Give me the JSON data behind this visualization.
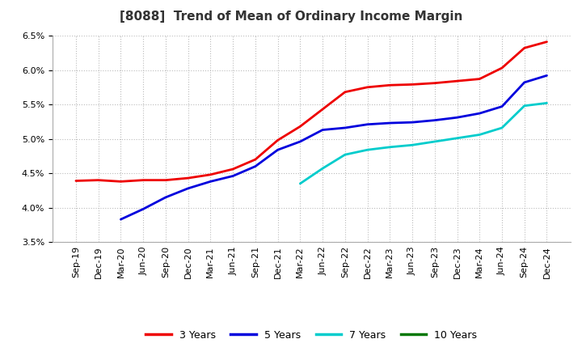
{
  "title": "[8088]  Trend of Mean of Ordinary Income Margin",
  "ylim": [
    0.035,
    0.065
  ],
  "yticks": [
    0.035,
    0.04,
    0.045,
    0.05,
    0.055,
    0.06,
    0.065
  ],
  "background_color": "#ffffff",
  "grid_color": "#bbbbbb",
  "x_labels": [
    "Sep-19",
    "Dec-19",
    "Mar-20",
    "Jun-20",
    "Sep-20",
    "Dec-20",
    "Mar-21",
    "Jun-21",
    "Sep-21",
    "Dec-21",
    "Mar-22",
    "Jun-22",
    "Sep-22",
    "Dec-22",
    "Mar-23",
    "Jun-23",
    "Sep-23",
    "Dec-23",
    "Mar-24",
    "Jun-24",
    "Sep-24",
    "Dec-24"
  ],
  "series": {
    "3 Years": {
      "color": "#ee0000",
      "data": [
        0.0439,
        0.044,
        0.0438,
        0.044,
        0.044,
        0.0443,
        0.0448,
        0.0456,
        0.047,
        0.0498,
        0.0518,
        0.0543,
        0.0568,
        0.0575,
        0.0578,
        0.0579,
        0.0581,
        0.0584,
        0.0587,
        0.0603,
        0.0632,
        0.0641
      ]
    },
    "5 Years": {
      "color": "#0000dd",
      "data": [
        null,
        null,
        0.0383,
        0.0398,
        0.0415,
        0.0428,
        0.0438,
        0.0446,
        0.046,
        0.0484,
        0.0496,
        0.0513,
        0.0516,
        0.0521,
        0.0523,
        0.0524,
        0.0527,
        0.0531,
        0.0537,
        0.0547,
        0.0582,
        0.0592
      ]
    },
    "7 Years": {
      "color": "#00cccc",
      "data": [
        null,
        null,
        null,
        null,
        null,
        null,
        null,
        null,
        null,
        null,
        0.0435,
        0.0457,
        0.0477,
        0.0484,
        0.0488,
        0.0491,
        0.0496,
        0.0501,
        0.0506,
        0.0516,
        0.0548,
        0.0552
      ]
    },
    "10 Years": {
      "color": "#007700",
      "data": [
        null,
        null,
        null,
        null,
        null,
        null,
        null,
        null,
        null,
        null,
        null,
        null,
        null,
        null,
        null,
        null,
        null,
        null,
        null,
        null,
        null,
        null
      ]
    }
  },
  "legend_labels": [
    "3 Years",
    "5 Years",
    "7 Years",
    "10 Years"
  ],
  "legend_colors": [
    "#ee0000",
    "#0000dd",
    "#00cccc",
    "#007700"
  ],
  "title_fontsize": 11,
  "tick_fontsize": 8,
  "linewidth": 2.0
}
